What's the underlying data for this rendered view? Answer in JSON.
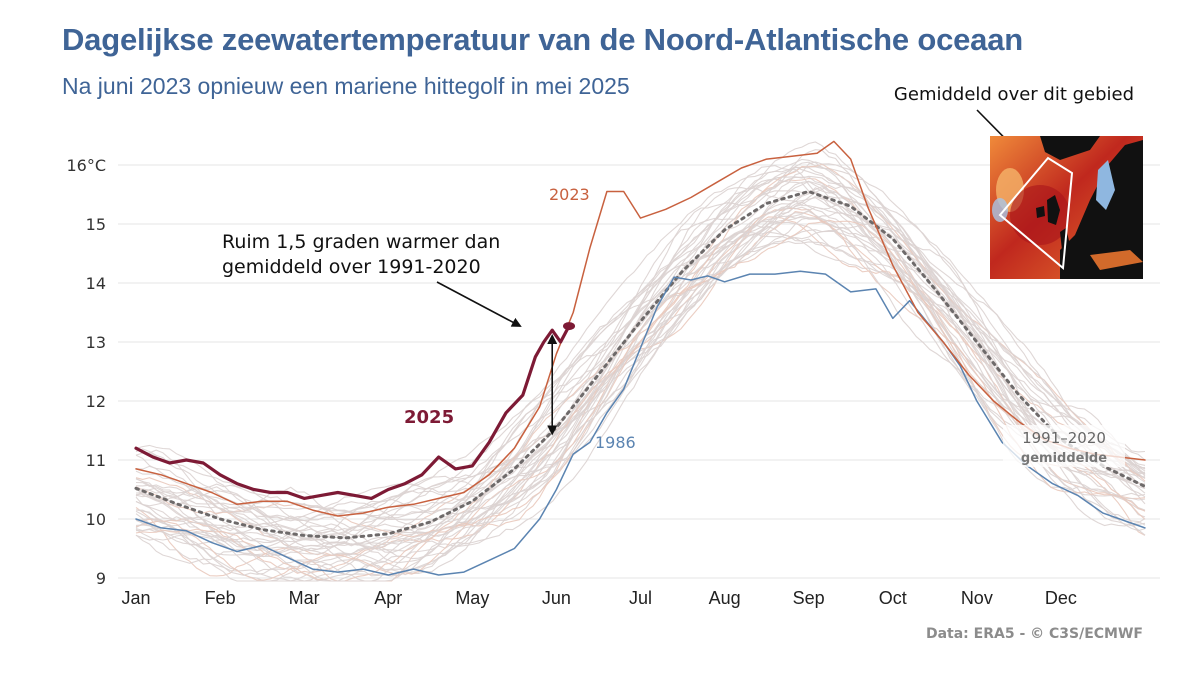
{
  "header": {
    "title": "Dagelijkse zeewatertemperatuur van de Noord-Atlantische oceaan",
    "subtitle": "Na juni 2023 opnieuw een mariene hittegolf in mei 2025"
  },
  "footer": {
    "source": "Data: ERA5 - © C3S/ECMWF"
  },
  "inset_map": {
    "label": "Gemiddeld over dit gebied"
  },
  "colors": {
    "y2025": "#7d1a35",
    "y2023": "#c8613f",
    "y1986": "#5b84b1",
    "other_years": "#dcd3d1",
    "average": "#6e6a6a",
    "grid": "#e4e4e4",
    "title": "#3f6496"
  },
  "chart_data": {
    "type": "line",
    "title": "Dagelijkse zeewatertemperatuur van de Noord-Atlantische oceaan",
    "subtitle": "Na juni 2023 opnieuw een mariene hittegolf in mei 2025",
    "xlabel": "",
    "ylabel": "°C",
    "x_unit": "month (0 = 1 Jan, 12 = 31 Dec)",
    "xlim": [
      0,
      12
    ],
    "ylim": [
      9,
      16
    ],
    "grid": true,
    "y_ticks": [
      9,
      10,
      11,
      12,
      13,
      14,
      15,
      16
    ],
    "y_tick_labels": [
      "9",
      "10",
      "11",
      "12",
      "13",
      "14",
      "15",
      "16°C"
    ],
    "x_ticks": [
      0,
      1,
      2,
      3,
      4,
      5,
      6,
      7,
      8,
      9,
      10,
      11
    ],
    "x_tick_labels": [
      "Jan",
      "Feb",
      "Mar",
      "Apr",
      "May",
      "Jun",
      "Jul",
      "Aug",
      "Sep",
      "Oct",
      "Nov",
      "Dec"
    ],
    "series": [
      {
        "name": "2025",
        "label": "2025",
        "x": [
          0,
          0.2,
          0.4,
          0.6,
          0.8,
          1.0,
          1.2,
          1.4,
          1.6,
          1.8,
          2.0,
          2.2,
          2.4,
          2.6,
          2.8,
          3.0,
          3.2,
          3.4,
          3.6,
          3.8,
          4.0,
          4.2,
          4.4,
          4.6,
          4.75,
          4.85,
          4.95,
          5.05,
          5.15
        ],
        "y": [
          11.2,
          11.05,
          10.95,
          11.0,
          10.95,
          10.75,
          10.6,
          10.5,
          10.45,
          10.45,
          10.35,
          10.4,
          10.45,
          10.4,
          10.35,
          10.5,
          10.6,
          10.75,
          11.05,
          10.85,
          10.9,
          11.3,
          11.8,
          12.1,
          12.75,
          13.0,
          13.2,
          13.0,
          13.27
        ]
      },
      {
        "name": "2023",
        "label": "2023",
        "x": [
          0,
          0.3,
          0.6,
          0.9,
          1.2,
          1.5,
          1.8,
          2.1,
          2.4,
          2.7,
          3.0,
          3.3,
          3.6,
          3.9,
          4.2,
          4.5,
          4.8,
          5.0,
          5.2,
          5.4,
          5.6,
          5.8,
          6.0,
          6.3,
          6.6,
          6.9,
          7.2,
          7.5,
          7.8,
          8.1,
          8.3,
          8.5,
          8.7,
          9.0,
          9.3,
          9.6,
          9.9,
          10.2,
          10.5,
          10.8,
          11.1,
          11.4,
          12.0
        ],
        "y": [
          10.85,
          10.75,
          10.6,
          10.45,
          10.25,
          10.3,
          10.3,
          10.15,
          10.05,
          10.1,
          10.2,
          10.25,
          10.35,
          10.45,
          10.75,
          11.2,
          11.9,
          12.8,
          13.5,
          14.6,
          15.55,
          15.55,
          15.1,
          15.25,
          15.45,
          15.7,
          15.95,
          16.1,
          16.15,
          16.2,
          16.4,
          16.1,
          15.3,
          14.3,
          13.5,
          13.0,
          12.45,
          12.0,
          11.65,
          11.35,
          11.2,
          11.1,
          11.0
        ]
      },
      {
        "name": "1986",
        "label": "1986",
        "x": [
          0,
          0.3,
          0.6,
          0.9,
          1.2,
          1.5,
          1.8,
          2.1,
          2.4,
          2.7,
          3.0,
          3.3,
          3.6,
          3.9,
          4.2,
          4.5,
          4.8,
          5.0,
          5.2,
          5.4,
          5.6,
          5.8,
          6.0,
          6.2,
          6.4,
          6.6,
          6.8,
          7.0,
          7.3,
          7.6,
          7.9,
          8.2,
          8.5,
          8.8,
          9.0,
          9.2,
          9.4,
          9.6,
          9.8,
          10.0,
          10.3,
          10.6,
          10.9,
          11.2,
          11.5,
          11.8,
          12.0
        ],
        "y": [
          10.0,
          9.85,
          9.8,
          9.6,
          9.45,
          9.55,
          9.35,
          9.15,
          9.1,
          9.15,
          9.05,
          9.15,
          9.05,
          9.1,
          9.3,
          9.5,
          10.0,
          10.5,
          11.1,
          11.3,
          11.8,
          12.2,
          12.9,
          13.6,
          14.1,
          14.05,
          14.12,
          14.02,
          14.15,
          14.15,
          14.2,
          14.15,
          13.85,
          13.9,
          13.4,
          13.7,
          13.35,
          13.0,
          12.6,
          12.0,
          11.3,
          10.9,
          10.6,
          10.4,
          10.1,
          9.95,
          9.85
        ]
      },
      {
        "name": "1991-2020 gemiddelde",
        "label": "1991–2020 gemiddelde",
        "x": [
          0,
          0.5,
          1.0,
          1.5,
          2.0,
          2.5,
          3.0,
          3.5,
          4.0,
          4.5,
          5.0,
          5.5,
          6.0,
          6.5,
          7.0,
          7.5,
          8.0,
          8.5,
          9.0,
          9.5,
          10.0,
          10.5,
          11.0,
          11.5,
          12.0
        ],
        "y": [
          10.52,
          10.25,
          10.0,
          9.82,
          9.72,
          9.68,
          9.75,
          9.95,
          10.3,
          10.85,
          11.55,
          12.45,
          13.35,
          14.2,
          14.9,
          15.35,
          15.55,
          15.3,
          14.75,
          13.9,
          13.0,
          12.1,
          11.35,
          10.9,
          10.55
        ]
      }
    ],
    "background_series": {
      "name": "overige jaren",
      "count": 40,
      "range_description": "grey lines spread around the 1991-2020 average, roughly ±0.8 °C"
    },
    "annotations": [
      {
        "text_line1": "Ruim 1,5 graden warmer dan",
        "text_line2": "gemiddeld over 1991-2020",
        "x": 4.9,
        "y": 13.2
      },
      {
        "text": "2025",
        "series": "2025"
      },
      {
        "text": "2023",
        "series": "2023"
      },
      {
        "text": "1986",
        "series": "1986"
      },
      {
        "text_line1": "1991–2020",
        "text_line2": "gemiddelde",
        "series": "average"
      }
    ],
    "gap_arrow": {
      "x": 4.95,
      "from_y": 11.45,
      "to_y": 13.0
    },
    "legend": "inline-labels"
  }
}
